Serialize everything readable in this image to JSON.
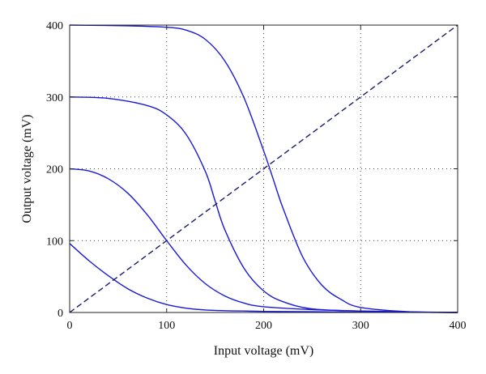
{
  "chart_data": {
    "type": "line",
    "title": "",
    "xlabel": "Input voltage (mV)",
    "ylabel": "Output voltage (mV)",
    "xlim": [
      0,
      400
    ],
    "ylim": [
      0,
      400
    ],
    "xticks": [
      0,
      100,
      200,
      300,
      400
    ],
    "yticks": [
      0,
      100,
      200,
      300,
      400
    ],
    "grid": "dotted",
    "legend": "none",
    "colors": {
      "curves": "#1a1ad6",
      "reference": "#1a1a6e",
      "axes": "#222222",
      "grid": "#444444"
    },
    "series": [
      {
        "style": "solid",
        "x": [
          0,
          20,
          40,
          60,
          80,
          100,
          120,
          140,
          160,
          180,
          200,
          250,
          300,
          350,
          400
        ],
        "y": [
          96,
          72,
          51,
          33,
          20,
          11,
          6,
          3.5,
          2.5,
          2,
          1.5,
          1,
          0.5,
          0.3,
          0
        ]
      },
      {
        "style": "solid",
        "x": [
          0,
          20,
          40,
          60,
          80,
          100,
          120,
          140,
          160,
          180,
          200,
          250,
          300,
          350,
          400
        ],
        "y": [
          200,
          197,
          186,
          166,
          136,
          100,
          66,
          40,
          23,
          13,
          8,
          4,
          2,
          0.8,
          0
        ]
      },
      {
        "style": "solid",
        "x": [
          0,
          40,
          80,
          100,
          120,
          140,
          150,
          160,
          180,
          200,
          220,
          250,
          300,
          350,
          400
        ],
        "y": [
          300,
          298,
          288,
          275,
          248,
          196,
          155,
          115,
          61,
          30,
          15,
          5,
          2,
          0.5,
          0
        ]
      },
      {
        "style": "solid",
        "x": [
          0,
          60,
          100,
          120,
          140,
          160,
          180,
          200,
          210,
          220,
          240,
          260,
          280,
          300,
          350,
          400
        ],
        "y": [
          400,
          399,
          397,
          393,
          380,
          350,
          298,
          225,
          185,
          145,
          78,
          38,
          18,
          7,
          1,
          0
        ]
      },
      {
        "style": "dashed",
        "x": [
          0,
          400
        ],
        "y": [
          0,
          400
        ]
      }
    ]
  }
}
